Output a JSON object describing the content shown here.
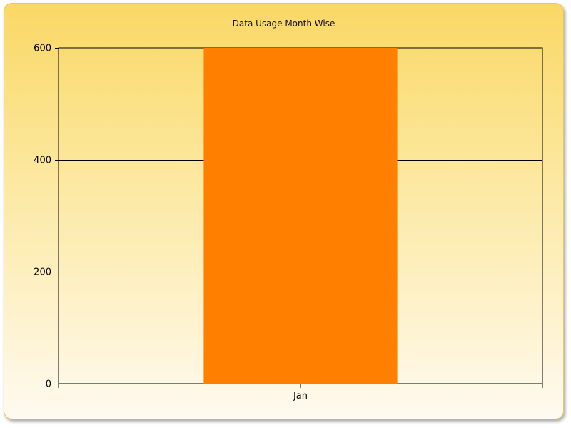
{
  "chart_data": {
    "type": "bar",
    "title": "Data Usage Month Wise",
    "xlabel": "",
    "ylabel": "",
    "categories": [
      "Jan"
    ],
    "values": [
      600
    ],
    "ylim": [
      0,
      600
    ],
    "yticks": [
      0,
      200,
      400,
      600
    ],
    "grid": true,
    "legend": "none",
    "bar_color": "#ff8000"
  }
}
